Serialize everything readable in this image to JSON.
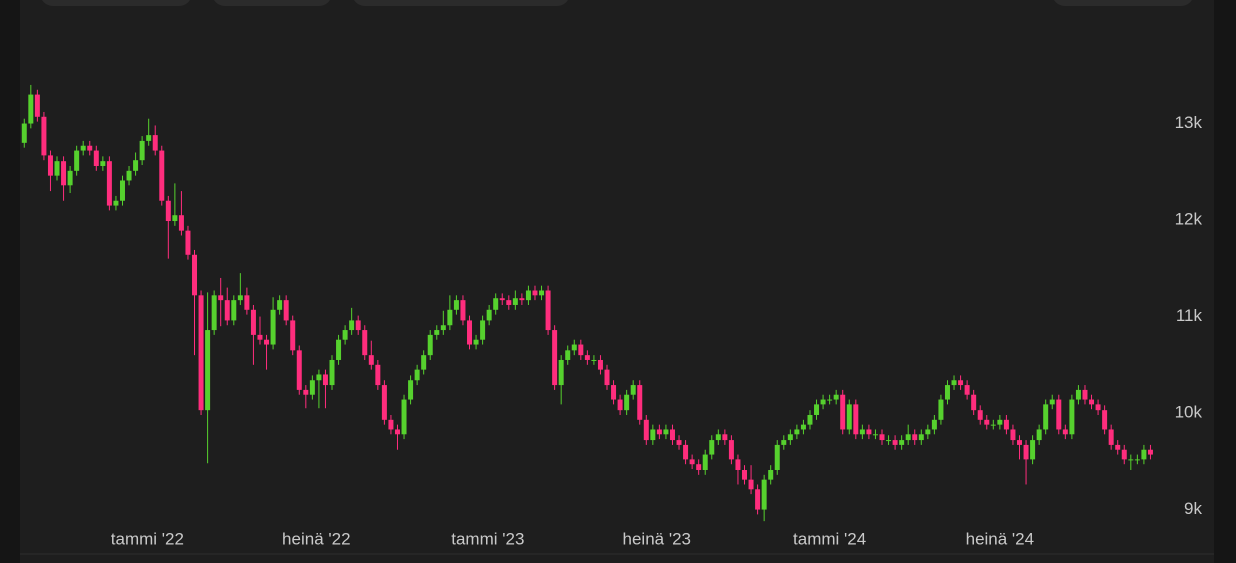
{
  "chart_data": {
    "type": "candlestick",
    "up_color": "#56d12e",
    "down_color": "#ff2d7d",
    "xlim": [
      -0.5,
      173
    ],
    "xticks": [
      {
        "value": 18.8,
        "label": "tammi '22"
      },
      {
        "value": 44.6,
        "label": "heinä '22"
      },
      {
        "value": 70.8,
        "label": "tammi '23"
      },
      {
        "value": 96.6,
        "label": "heinä '23"
      },
      {
        "value": 123,
        "label": "tammi '24"
      },
      {
        "value": 149,
        "label": "heinä '24"
      }
    ],
    "ylim": [
      8550,
      14280
    ],
    "yticks": [
      {
        "value": 9000,
        "label": "9k"
      },
      {
        "value": 10000,
        "label": "10k"
      },
      {
        "value": 11000,
        "label": "11k"
      },
      {
        "value": 12000,
        "label": "12k"
      },
      {
        "value": 13000,
        "label": "13k"
      }
    ],
    "open": [
      12800,
      13000,
      13300,
      13070,
      12670,
      12460,
      12610,
      12360,
      12510,
      12720,
      12770,
      12720,
      12560,
      12610,
      12150,
      12200,
      12410,
      12510,
      12620,
      12820,
      12880,
      12720,
      12200,
      11990,
      12050,
      11890,
      11640,
      11220,
      10030,
      10860,
      11220,
      11170,
      10960,
      11170,
      11220,
      11070,
      10810,
      10760,
      10710,
      11070,
      11170,
      10960,
      10650,
      10240,
      10190,
      10340,
      10400,
      10290,
      10550,
      10760,
      10860,
      10960,
      10860,
      10600,
      10500,
      10290,
      9930,
      9830,
      9780,
      10140,
      10340,
      10450,
      10600,
      10810,
      10860,
      10910,
      11070,
      11170,
      10960,
      10710,
      10760,
      10960,
      11070,
      11190,
      11170,
      11120,
      11190,
      11170,
      11270,
      11220,
      11270,
      10860,
      10290,
      10550,
      10650,
      10710,
      10600,
      10550,
      10550,
      10450,
      10290,
      10140,
      10030,
      10190,
      10290,
      9930,
      9720,
      9830,
      9780,
      9830,
      9720,
      9670,
      9520,
      9470,
      9410,
      9570,
      9720,
      9780,
      9720,
      9520,
      9410,
      9310,
      9210,
      9000,
      9310,
      9410,
      9670,
      9720,
      9780,
      9830,
      9880,
      9980,
      10090,
      10140,
      10140,
      10190,
      9830,
      10090,
      9780,
      9830,
      9780,
      9780,
      9720,
      9720,
      9670,
      9720,
      9780,
      9720,
      9780,
      9830,
      9930,
      10140,
      10290,
      10340,
      10290,
      10190,
      10030,
      9930,
      9880,
      9880,
      9930,
      9830,
      9720,
      9670,
      9520,
      9720,
      9830,
      10090,
      10140,
      9830,
      9780,
      10140,
      10240,
      10140,
      10090,
      10030,
      9830,
      9670,
      9620,
      9520,
      9520,
      9520,
      9620
    ],
    "high": [
      13050,
      13400,
      13350,
      13120,
      12720,
      12660,
      12660,
      12560,
      12770,
      12820,
      12820,
      12770,
      12660,
      12660,
      12250,
      12460,
      12560,
      12700,
      12870,
      13050,
      12980,
      12770,
      12250,
      12380,
      12300,
      11940,
      11690,
      11270,
      11250,
      11270,
      11400,
      11300,
      11220,
      11450,
      11300,
      11120,
      11000,
      10810,
      11200,
      11220,
      11220,
      11010,
      10700,
      10290,
      10390,
      10450,
      10450,
      10600,
      10810,
      10910,
      11090,
      11010,
      10910,
      10750,
      10550,
      10340,
      9980,
      9880,
      10190,
      10390,
      10500,
      10650,
      10860,
      10910,
      11060,
      11220,
      11220,
      11220,
      11010,
      10810,
      11010,
      11120,
      11240,
      11240,
      11220,
      11270,
      11240,
      11320,
      11320,
      11320,
      11320,
      10910,
      10600,
      10700,
      10760,
      10760,
      10650,
      10600,
      10600,
      10500,
      10340,
      10190,
      10240,
      10340,
      10340,
      9980,
      9880,
      9880,
      9880,
      9880,
      9770,
      9720,
      9570,
      9520,
      9620,
      9770,
      9830,
      9830,
      9770,
      9570,
      9460,
      9460,
      9260,
      9360,
      9460,
      9720,
      9770,
      9830,
      9880,
      9930,
      10030,
      10140,
      10190,
      10190,
      10240,
      10240,
      10140,
      10140,
      9880,
      9880,
      9830,
      9830,
      9770,
      9770,
      9770,
      9880,
      9830,
      9830,
      9880,
      9980,
      10190,
      10340,
      10390,
      10390,
      10340,
      10240,
      10080,
      9980,
      9930,
      9980,
      9980,
      9880,
      9770,
      9720,
      9770,
      9880,
      10140,
      10190,
      10190,
      9880,
      10190,
      10290,
      10290,
      10190,
      10140,
      10080,
      9880,
      9720,
      9670,
      9570,
      9570,
      9670,
      9670
    ],
    "low": [
      12750,
      12950,
      13020,
      12620,
      12300,
      12410,
      12200,
      12280,
      12460,
      12670,
      12670,
      12510,
      12510,
      12100,
      12100,
      12150,
      12360,
      12460,
      12570,
      12770,
      12670,
      12150,
      11600,
      11940,
      11840,
      11590,
      10600,
      9980,
      9480,
      10810,
      10900,
      10910,
      10910,
      11120,
      11020,
      10500,
      10710,
      10450,
      10660,
      11020,
      10910,
      10600,
      10190,
      10050,
      10140,
      10050,
      10050,
      10240,
      10500,
      10710,
      10810,
      10810,
      10550,
      10450,
      10240,
      9880,
      9780,
      9620,
      9730,
      10090,
      10290,
      10400,
      10550,
      10760,
      10810,
      10860,
      11020,
      10910,
      10660,
      10660,
      10710,
      10910,
      11020,
      11120,
      11070,
      11070,
      11120,
      11120,
      11170,
      11170,
      10810,
      10240,
      10090,
      10500,
      10600,
      10550,
      10500,
      10500,
      10400,
      10240,
      10090,
      9980,
      9980,
      10140,
      9880,
      9670,
      9670,
      9730,
      9730,
      9670,
      9620,
      9470,
      9420,
      9360,
      9360,
      9520,
      9670,
      9670,
      9470,
      9260,
      9260,
      9160,
      8950,
      8880,
      9260,
      9360,
      9620,
      9670,
      9730,
      9780,
      9830,
      9930,
      10040,
      10090,
      10090,
      9780,
      9780,
      9730,
      9730,
      9730,
      9730,
      9670,
      9670,
      9620,
      9620,
      9670,
      9670,
      9670,
      9730,
      9780,
      9880,
      10090,
      10240,
      10240,
      10140,
      9980,
      9880,
      9830,
      9830,
      9830,
      9780,
      9670,
      9520,
      9260,
      9470,
      9670,
      9780,
      10040,
      9780,
      9730,
      9730,
      10090,
      10090,
      10040,
      9980,
      9780,
      9620,
      9570,
      9470,
      9410,
      9470,
      9470,
      9520
    ],
    "close": [
      13000,
      13300,
      13070,
      12670,
      12460,
      12610,
      12360,
      12510,
      12720,
      12770,
      12720,
      12560,
      12610,
      12150,
      12200,
      12410,
      12510,
      12620,
      12820,
      12880,
      12720,
      12200,
      11990,
      12050,
      11890,
      11640,
      11220,
      10030,
      10860,
      11220,
      11170,
      10960,
      11170,
      11220,
      11070,
      10810,
      10760,
      10710,
      11070,
      11170,
      10960,
      10650,
      10240,
      10190,
      10340,
      10400,
      10290,
      10550,
      10760,
      10860,
      10960,
      10860,
      10600,
      10500,
      10290,
      9930,
      9830,
      9780,
      10140,
      10340,
      10450,
      10600,
      10810,
      10860,
      10910,
      11070,
      11170,
      10960,
      10710,
      10760,
      10960,
      11070,
      11190,
      11170,
      11120,
      11190,
      11170,
      11270,
      11220,
      11270,
      10860,
      10290,
      10550,
      10650,
      10710,
      10600,
      10550,
      10550,
      10450,
      10290,
      10140,
      10030,
      10190,
      10290,
      9930,
      9720,
      9830,
      9780,
      9830,
      9720,
      9670,
      9520,
      9470,
      9410,
      9570,
      9720,
      9780,
      9720,
      9520,
      9410,
      9310,
      9210,
      9000,
      9310,
      9410,
      9670,
      9720,
      9780,
      9830,
      9880,
      9980,
      10090,
      10140,
      10140,
      10190,
      9830,
      10090,
      9780,
      9830,
      9780,
      9780,
      9720,
      9720,
      9670,
      9720,
      9780,
      9720,
      9780,
      9830,
      9930,
      10140,
      10290,
      10340,
      10290,
      10190,
      10030,
      9930,
      9880,
      9880,
      9930,
      9830,
      9720,
      9670,
      9520,
      9720,
      9830,
      10090,
      10140,
      9830,
      9780,
      10140,
      10240,
      10140,
      10090,
      10030,
      9830,
      9670,
      9620,
      9520,
      9520,
      9520,
      9620,
      9570
    ]
  }
}
